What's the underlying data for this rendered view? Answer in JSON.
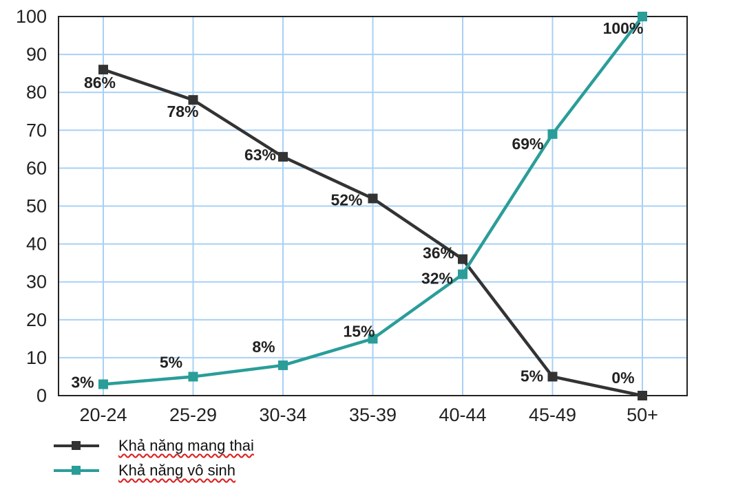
{
  "chart_data": {
    "type": "line",
    "categories": [
      "20-24",
      "25-29",
      "30-34",
      "35-39",
      "40-44",
      "45-49",
      "50+"
    ],
    "ylim": [
      0,
      100
    ],
    "yticks": [
      0,
      10,
      20,
      30,
      40,
      50,
      60,
      70,
      80,
      90,
      100
    ],
    "grid": true,
    "legend_position": "bottom-left",
    "series": [
      {
        "name": "Khả năng mang thai",
        "color": "#333333",
        "values": [
          86,
          78,
          63,
          52,
          36,
          5,
          0
        ],
        "labels": [
          "86%",
          "78%",
          "63%",
          "52%",
          "36%",
          "5%",
          "0%"
        ]
      },
      {
        "name": "Khả năng vô sinh",
        "color": "#2a9d99",
        "values": [
          3,
          5,
          8,
          15,
          32,
          69,
          100
        ],
        "labels": [
          "3%",
          "5%",
          "8%",
          "15%",
          "32%",
          "69%",
          "100%"
        ]
      }
    ]
  },
  "colors": {
    "grid": "#a8d0f5",
    "axis": "#222222"
  }
}
